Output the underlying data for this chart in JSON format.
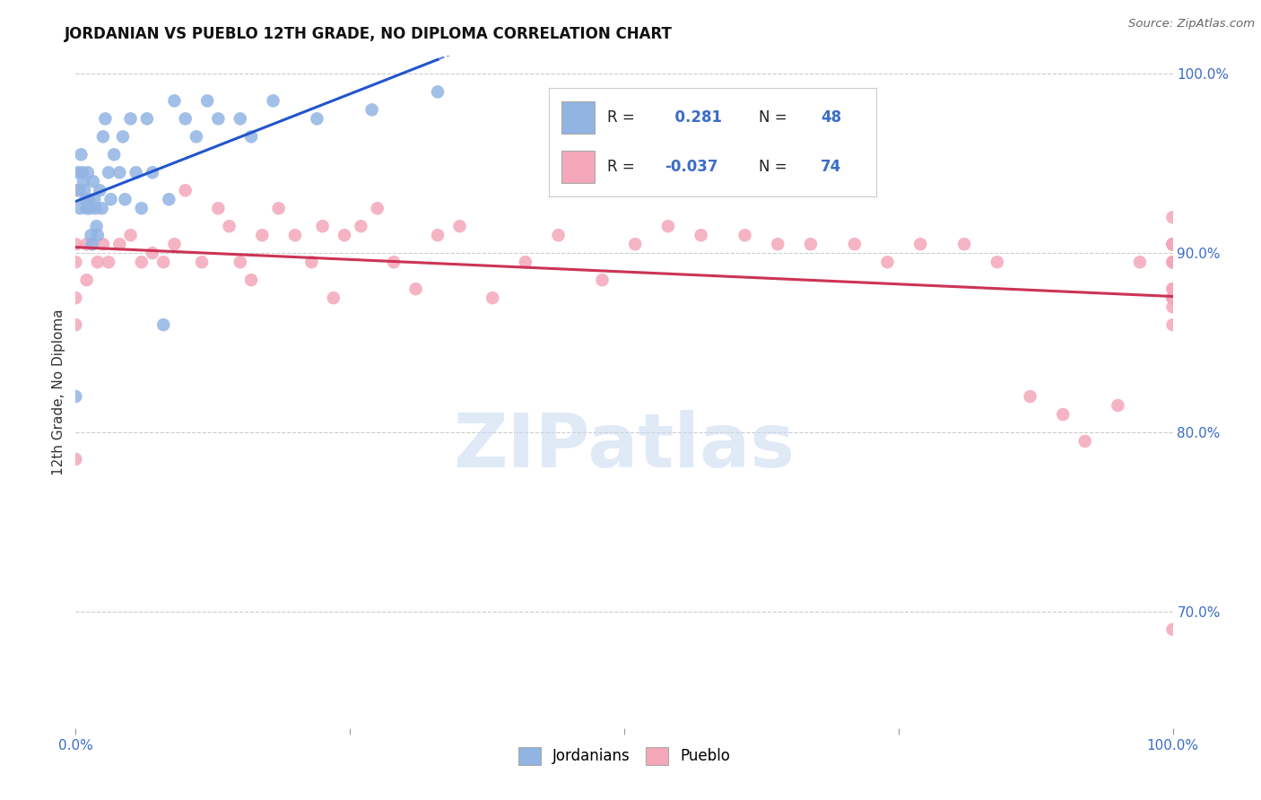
{
  "title": "JORDANIAN VS PUEBLO 12TH GRADE, NO DIPLOMA CORRELATION CHART",
  "source": "Source: ZipAtlas.com",
  "ylabel": "12th Grade, No Diploma",
  "xlim": [
    0.0,
    1.0
  ],
  "ylim": [
    0.635,
    1.01
  ],
  "jordanian_R": 0.281,
  "jordanian_N": 48,
  "pueblo_R": -0.037,
  "pueblo_N": 74,
  "jordanian_color": "#92B4E3",
  "pueblo_color": "#F4A7B9",
  "jordanian_line_color": "#2255CC",
  "pueblo_line_color": "#CC3355",
  "background_color": "#ffffff",
  "grid_color": "#cccccc",
  "ytick_vals": [
    0.7,
    0.8,
    0.9,
    1.0
  ],
  "ytick_labels": [
    "70.0%",
    "80.0%",
    "90.0%",
    "100.0%"
  ],
  "xtick_vals": [
    0.0,
    1.0
  ],
  "xtick_labels": [
    "0.0%",
    "100.0%"
  ],
  "jordanian_x": [
    0.0,
    0.002,
    0.003,
    0.004,
    0.005,
    0.006,
    0.007,
    0.008,
    0.009,
    0.01,
    0.011,
    0.012,
    0.013,
    0.014,
    0.015,
    0.016,
    0.017,
    0.018,
    0.019,
    0.02,
    0.022,
    0.024,
    0.025,
    0.027,
    0.03,
    0.032,
    0.035,
    0.04,
    0.043,
    0.045,
    0.05,
    0.055,
    0.06,
    0.065,
    0.07,
    0.08,
    0.085,
    0.09,
    0.1,
    0.11,
    0.12,
    0.13,
    0.15,
    0.16,
    0.18,
    0.22,
    0.27,
    0.33
  ],
  "jordanian_y": [
    0.82,
    0.945,
    0.935,
    0.925,
    0.955,
    0.945,
    0.94,
    0.935,
    0.93,
    0.925,
    0.945,
    0.93,
    0.925,
    0.91,
    0.905,
    0.94,
    0.93,
    0.925,
    0.915,
    0.91,
    0.935,
    0.925,
    0.965,
    0.975,
    0.945,
    0.93,
    0.955,
    0.945,
    0.965,
    0.93,
    0.975,
    0.945,
    0.925,
    0.975,
    0.945,
    0.86,
    0.93,
    0.985,
    0.975,
    0.965,
    0.985,
    0.975,
    0.975,
    0.965,
    0.985,
    0.975,
    0.98,
    0.99
  ],
  "pueblo_x": [
    0.0,
    0.0,
    0.0,
    0.0,
    0.0,
    0.0,
    0.01,
    0.01,
    0.015,
    0.02,
    0.025,
    0.03,
    0.04,
    0.05,
    0.06,
    0.07,
    0.08,
    0.09,
    0.1,
    0.115,
    0.13,
    0.14,
    0.15,
    0.16,
    0.17,
    0.185,
    0.2,
    0.215,
    0.225,
    0.235,
    0.245,
    0.26,
    0.275,
    0.29,
    0.31,
    0.33,
    0.35,
    0.38,
    0.41,
    0.44,
    0.48,
    0.51,
    0.54,
    0.57,
    0.61,
    0.64,
    0.67,
    0.71,
    0.74,
    0.77,
    0.81,
    0.84,
    0.87,
    0.9,
    0.92,
    0.95,
    0.97,
    1.0,
    1.0,
    1.0,
    1.0,
    1.0,
    1.0,
    1.0,
    1.0,
    1.0,
    1.0,
    1.0,
    1.0,
    1.0,
    1.0,
    1.0,
    1.0,
    1.0
  ],
  "pueblo_y": [
    0.935,
    0.905,
    0.895,
    0.875,
    0.86,
    0.785,
    0.905,
    0.885,
    0.905,
    0.895,
    0.905,
    0.895,
    0.905,
    0.91,
    0.895,
    0.9,
    0.895,
    0.905,
    0.935,
    0.895,
    0.925,
    0.915,
    0.895,
    0.885,
    0.91,
    0.925,
    0.91,
    0.895,
    0.915,
    0.875,
    0.91,
    0.915,
    0.925,
    0.895,
    0.88,
    0.91,
    0.915,
    0.875,
    0.895,
    0.91,
    0.885,
    0.905,
    0.915,
    0.91,
    0.91,
    0.905,
    0.905,
    0.905,
    0.895,
    0.905,
    0.905,
    0.895,
    0.82,
    0.81,
    0.795,
    0.815,
    0.895,
    0.92,
    0.905,
    0.905,
    0.905,
    0.905,
    0.895,
    0.895,
    0.895,
    0.905,
    0.86,
    0.88,
    0.875,
    0.87,
    0.88,
    0.875,
    0.875,
    0.69
  ]
}
